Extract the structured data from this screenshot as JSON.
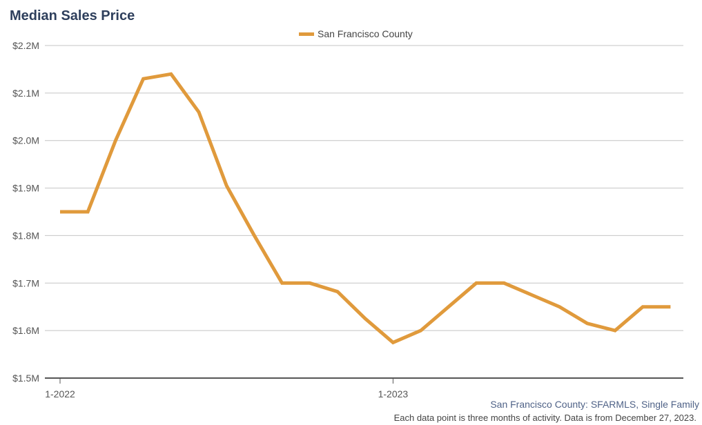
{
  "chart_data": {
    "type": "line",
    "title": "Median Sales Price",
    "xlabel": "",
    "ylabel": "",
    "ylim": [
      1500000,
      2200000
    ],
    "yticks": [
      {
        "value": 1500000,
        "label": "$1.5M"
      },
      {
        "value": 1600000,
        "label": "$1.6M"
      },
      {
        "value": 1700000,
        "label": "$1.7M"
      },
      {
        "value": 1800000,
        "label": "$1.8M"
      },
      {
        "value": 1900000,
        "label": "$1.9M"
      },
      {
        "value": 2000000,
        "label": "$2.0M"
      },
      {
        "value": 2100000,
        "label": "$2.1M"
      },
      {
        "value": 2200000,
        "label": "$2.2M"
      }
    ],
    "x": [
      "2022-01",
      "2022-02",
      "2022-03",
      "2022-04",
      "2022-05",
      "2022-06",
      "2022-07",
      "2022-08",
      "2022-09",
      "2022-10",
      "2022-11",
      "2022-12",
      "2023-01",
      "2023-02",
      "2023-03",
      "2023-04",
      "2023-05",
      "2023-06",
      "2023-07",
      "2023-08",
      "2023-09",
      "2023-10",
      "2023-11"
    ],
    "xticks": [
      {
        "value": "2022-01",
        "label": "1-2022"
      },
      {
        "value": "2023-01",
        "label": "1-2023"
      }
    ],
    "grid": true,
    "legend_position": "top-center",
    "series": [
      {
        "name": "San Francisco County",
        "color": "#e09a3c",
        "values": [
          1850000,
          1850000,
          2000000,
          2130000,
          2140000,
          2060000,
          1905000,
          1800000,
          1700000,
          1700000,
          1682000,
          1625000,
          1575000,
          1600000,
          1650000,
          1700000,
          1700000,
          1675000,
          1650000,
          1615000,
          1600000,
          1650000,
          1650000
        ]
      }
    ]
  },
  "footer": {
    "source": "San Francisco County: SFARMLS, Single Family",
    "note": "Each data point is three months of activity. Data is from December 27, 2023."
  }
}
